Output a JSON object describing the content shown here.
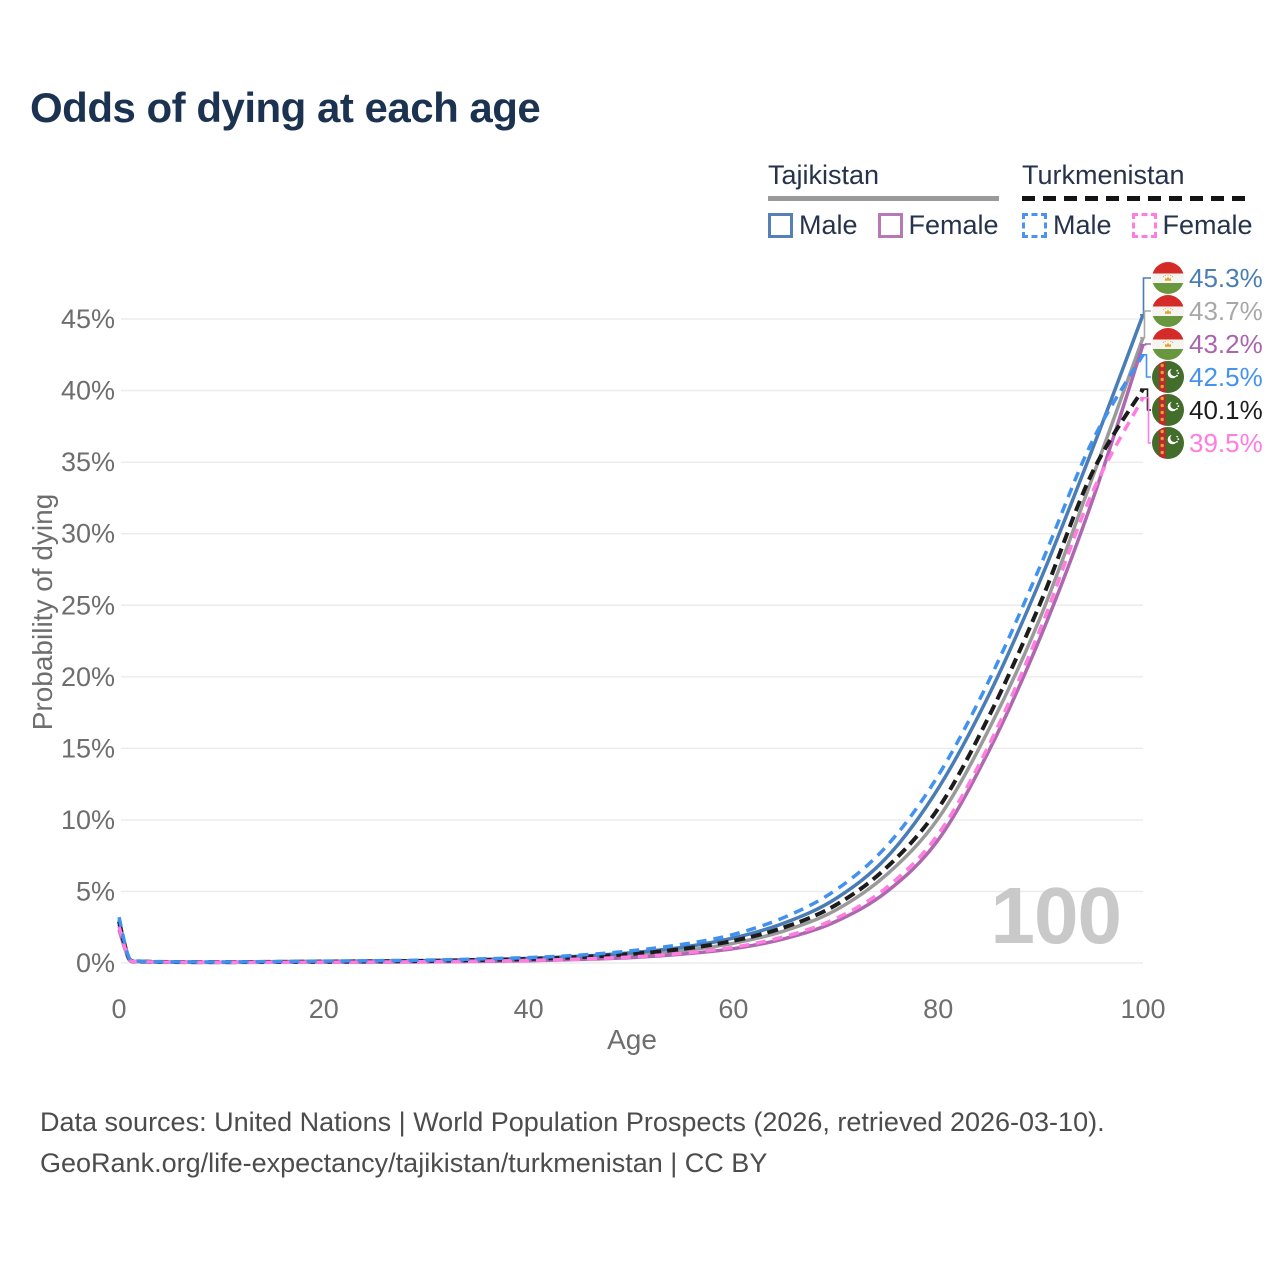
{
  "title": "Odds of dying at each age",
  "legend": {
    "groups": [
      {
        "name": "Tajikistan",
        "line_style": "solid",
        "line_color": "#9a9a9a",
        "items": [
          {
            "label": "Male",
            "color": "#5580b8",
            "dashed": false
          },
          {
            "label": "Female",
            "color": "#b778b5",
            "dashed": false
          }
        ]
      },
      {
        "name": "Turkmenistan",
        "line_style": "dashed",
        "line_color": "#141414",
        "items": [
          {
            "label": "Male",
            "color": "#4b93f0",
            "dashed": true
          },
          {
            "label": "Female",
            "color": "#ff7ce4",
            "dashed": true
          }
        ]
      }
    ]
  },
  "chart_data": {
    "type": "line",
    "title": "Odds of dying at each age",
    "xlabel": "Age",
    "ylabel": "Probability of dying",
    "xlim": [
      0,
      100
    ],
    "ylim": [
      0,
      47
    ],
    "grid": "horizontal",
    "x_ticks": [
      0,
      20,
      40,
      60,
      80,
      100
    ],
    "y_ticks": [
      {
        "pct": 0,
        "label": "0%"
      },
      {
        "pct": 5,
        "label": "5%"
      },
      {
        "pct": 10,
        "label": "10%"
      },
      {
        "pct": 15,
        "label": "15%"
      },
      {
        "pct": 20,
        "label": "20%"
      },
      {
        "pct": 25,
        "label": "25%"
      },
      {
        "pct": 30,
        "label": "30%"
      },
      {
        "pct": 35,
        "label": "35%"
      },
      {
        "pct": 40,
        "label": "40%"
      },
      {
        "pct": 45,
        "label": "45%"
      }
    ],
    "x": [
      0,
      1,
      2,
      3,
      5,
      10,
      15,
      20,
      25,
      30,
      35,
      40,
      45,
      50,
      55,
      60,
      65,
      70,
      75,
      80,
      85,
      90,
      95,
      100
    ],
    "series": [
      {
        "name": "Tajikistan Both sexes",
        "country": "Tajikistan",
        "sex": "both",
        "color": "#9a9a9a",
        "dashed": false,
        "values": [
          2.7,
          0.25,
          0.11,
          0.08,
          0.06,
          0.05,
          0.07,
          0.08,
          0.1,
          0.12,
          0.17,
          0.24,
          0.36,
          0.55,
          0.86,
          1.38,
          2.25,
          3.7,
          6.2,
          10.1,
          16.4,
          24.2,
          33.8,
          43.7
        ]
      },
      {
        "name": "Tajikistan Female",
        "country": "Tajikistan",
        "sex": "female",
        "color": "#ad68b0",
        "dashed": false,
        "values": [
          2.35,
          0.22,
          0.1,
          0.07,
          0.055,
          0.045,
          0.05,
          0.05,
          0.06,
          0.08,
          0.11,
          0.16,
          0.25,
          0.38,
          0.62,
          1.0,
          1.7,
          2.9,
          5.0,
          8.6,
          14.9,
          22.8,
          32.2,
          43.2
        ]
      },
      {
        "name": "Tajikistan Male",
        "country": "Tajikistan",
        "sex": "male",
        "color": "#4a7db6",
        "dashed": false,
        "values": [
          3.0,
          0.28,
          0.12,
          0.09,
          0.07,
          0.06,
          0.09,
          0.11,
          0.14,
          0.17,
          0.24,
          0.32,
          0.47,
          0.72,
          1.1,
          1.75,
          2.8,
          4.5,
          7.4,
          12.2,
          18.8,
          26.8,
          35.8,
          45.3
        ]
      },
      {
        "name": "Turkmenistan Both sexes",
        "country": "Turkmenistan",
        "sex": "both",
        "color": "#1c1c1c",
        "dashed": true,
        "values": [
          2.9,
          0.29,
          0.12,
          0.09,
          0.07,
          0.06,
          0.08,
          0.1,
          0.12,
          0.15,
          0.21,
          0.28,
          0.41,
          0.63,
          0.98,
          1.55,
          2.5,
          4.05,
          6.7,
          10.8,
          17.3,
          25.2,
          34.2,
          40.1
        ]
      },
      {
        "name": "Turkmenistan Female",
        "country": "Turkmenistan",
        "sex": "female",
        "color": "#ff7ce0",
        "dashed": true,
        "values": [
          2.55,
          0.25,
          0.11,
          0.08,
          0.06,
          0.05,
          0.055,
          0.06,
          0.07,
          0.09,
          0.13,
          0.18,
          0.27,
          0.42,
          0.68,
          1.1,
          1.85,
          3.1,
          5.3,
          9.0,
          15.3,
          23.4,
          32.8,
          39.5
        ]
      },
      {
        "name": "Turkmenistan Male",
        "country": "Turkmenistan",
        "sex": "male",
        "color": "#4191f0",
        "dashed": true,
        "values": [
          3.2,
          0.32,
          0.14,
          0.1,
          0.08,
          0.07,
          0.1,
          0.13,
          0.16,
          0.2,
          0.28,
          0.38,
          0.55,
          0.85,
          1.3,
          2.0,
          3.2,
          5.1,
          8.2,
          13.1,
          19.8,
          27.8,
          36.4,
          42.5
        ]
      }
    ],
    "end_labels": [
      {
        "value": "45.3%",
        "pct": 45.3,
        "color": "#4a7db6",
        "flag": "flag-tajikistan",
        "series": "Tajikistan Male"
      },
      {
        "value": "43.7%",
        "pct": 43.7,
        "color": "#a8a8a8",
        "flag": "flag-tajikistan",
        "series": "Tajikistan Both sexes"
      },
      {
        "value": "43.2%",
        "pct": 43.2,
        "color": "#a965ad",
        "flag": "flag-tajikistan",
        "series": "Tajikistan Female"
      },
      {
        "value": "42.5%",
        "pct": 42.5,
        "color": "#4593ee",
        "flag": "flag-turkmenistan",
        "series": "Turkmenistan Male"
      },
      {
        "value": "40.1%",
        "pct": 40.1,
        "color": "#1d1d1d",
        "flag": "flag-turkmenistan",
        "series": "Turkmenistan Both sexes"
      },
      {
        "value": "39.5%",
        "pct": 39.5,
        "color": "#ff7ce0",
        "flag": "flag-turkmenistan",
        "series": "Turkmenistan Female"
      }
    ],
    "legend_position": "top-right"
  },
  "watermark": "100",
  "footer": {
    "line1": "Data sources: United Nations | World Population Prospects (2026, retrieved 2026-03-10).",
    "line2": "GeoRank.org/life-expectancy/tajikistan/turkmenistan | CC BY"
  }
}
